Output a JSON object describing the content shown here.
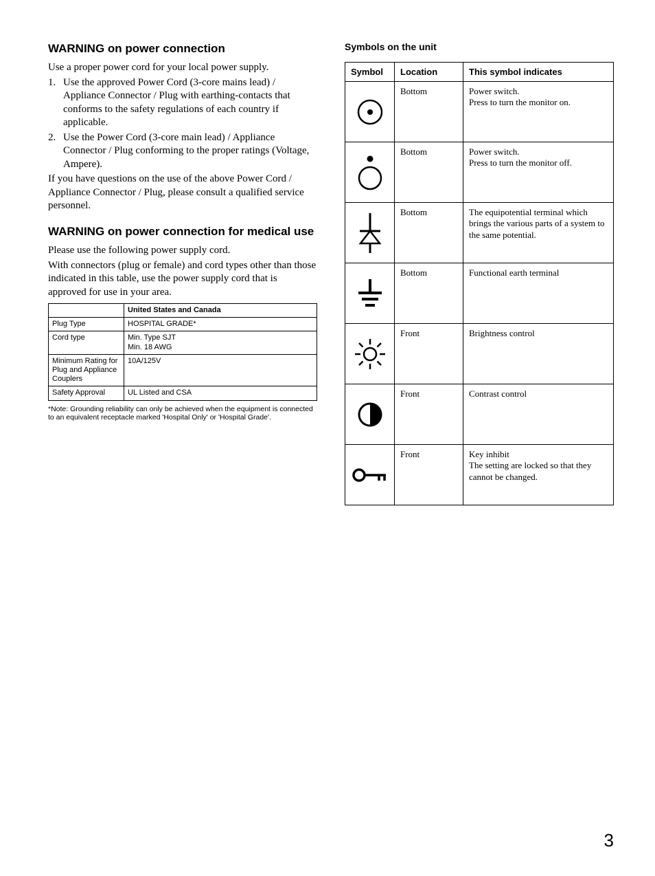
{
  "left": {
    "heading1": "WARNING on power connection",
    "para1": "Use a proper power cord for your local power supply.",
    "list": [
      "Use the approved Power Cord (3-core mains lead) / Appliance Connector / Plug with earthing-contacts that conforms to the safety regulations of each country if applicable.",
      "Use the Power Cord (3-core main lead) / Appliance Connector / Plug conforming to the proper ratings (Voltage, Ampere)."
    ],
    "para2": "If you have questions on the use of the above Power Cord / Appliance Connector / Plug, please consult a qualified service personnel.",
    "heading2": "WARNING on power connection for medical use",
    "para3": "Please use the following power supply cord.",
    "para4": "With connectors (plug or female) and cord types other than those indicated in this table, use the power supply cord that is approved for use in your area.",
    "cord_table": {
      "header_blank": "",
      "header_region": "United States and Canada",
      "rows": [
        {
          "label": "Plug Type",
          "value": "HOSPITAL GRADE*"
        },
        {
          "label": "Cord type",
          "value": "Min. Type SJT\nMin. 18 AWG"
        },
        {
          "label": "Minimum Rating for Plug and Appliance Couplers",
          "value": "10A/125V"
        },
        {
          "label": "Safety Approval",
          "value": "UL Listed and CSA"
        }
      ]
    },
    "footnote": "*Note: Grounding reliability can only be achieved when the equipment is connected to an equivalent receptacle marked 'Hospital Only' or 'Hospital Grade'."
  },
  "right": {
    "heading": "Symbols on the unit",
    "headers": {
      "symbol": "Symbol",
      "location": "Location",
      "indicates": "This symbol indicates"
    },
    "rows": [
      {
        "icon": "power-on",
        "location": "Bottom",
        "desc": "Power switch.\nPress to turn the monitor on."
      },
      {
        "icon": "power-off",
        "location": "Bottom",
        "desc": "Power switch.\nPress to turn the monitor off."
      },
      {
        "icon": "equipotential",
        "location": "Bottom",
        "desc": "The equipotential terminal which brings the various parts of a system to the same potential."
      },
      {
        "icon": "earth",
        "location": "Bottom",
        "desc": "Functional earth terminal"
      },
      {
        "icon": "brightness",
        "location": "Front",
        "desc": "Brightness control"
      },
      {
        "icon": "contrast",
        "location": "Front",
        "desc": "Contrast control"
      },
      {
        "icon": "key-inhibit",
        "location": "Front",
        "desc": "Key inhibit\nThe setting are locked so that they cannot be changed."
      }
    ]
  },
  "page_number": "3",
  "colors": {
    "text": "#000000",
    "bg": "#ffffff",
    "border": "#000000"
  }
}
